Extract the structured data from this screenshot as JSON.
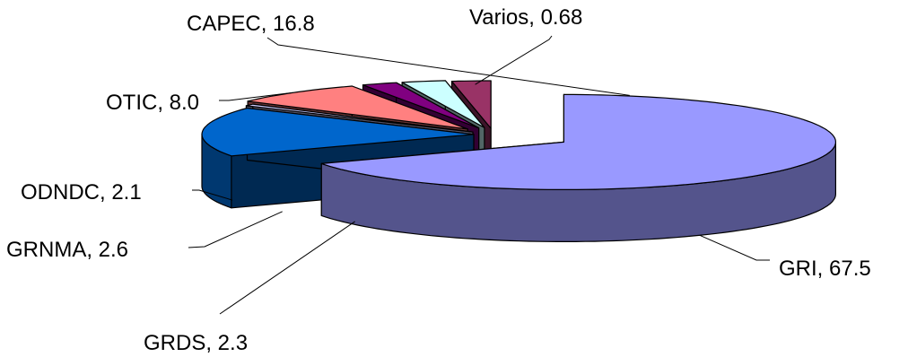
{
  "chart_data": {
    "type": "pie",
    "style": "3d-exploded",
    "categories": [
      "GRI",
      "CAPEC",
      "Varios",
      "OTIC",
      "ODNDC",
      "GRNMA",
      "GRDS"
    ],
    "values": [
      67.5,
      16.8,
      0.68,
      8.0,
      2.1,
      2.6,
      2.3
    ],
    "labels": [
      "GRI, 67.5",
      "CAPEC,  16.8",
      "Varios,  0.68",
      "OTIC,  8.0",
      "ODNDC,  2.1",
      "GRNMA,  2.6",
      "GRDS,  2.3"
    ],
    "colors": {
      "GRI": "#9999ff",
      "CAPEC": "#0066cc",
      "Varios": "#ccccff",
      "OTIC": "#ff8080",
      "ODNDC": "#800080",
      "GRNMA": "#ccffff",
      "GRDS": "#993366"
    },
    "legend": "none"
  }
}
